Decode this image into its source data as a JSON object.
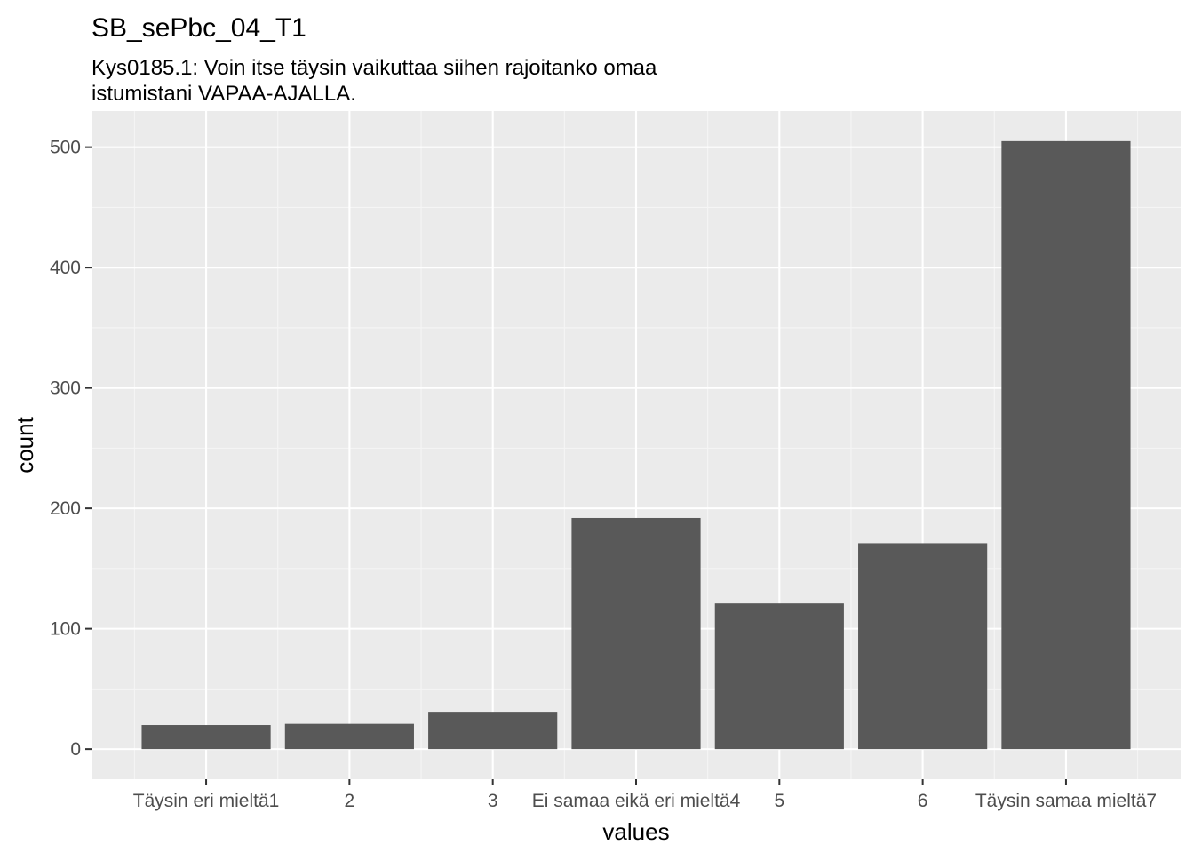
{
  "chart_data": {
    "type": "bar",
    "title": "SB_sePbc_04_T1",
    "subtitle_lines": [
      "Kys0185.1: Voin itse täysin vaikuttaa siihen rajoitanko omaa",
      "istumistani VAPAA-AJALLA."
    ],
    "xlabel": "values",
    "ylabel": "count",
    "categories": [
      "Täysin eri mieltä1",
      "2",
      "3",
      "Ei samaa eikä eri mieltä4",
      "5",
      "6",
      "Täysin samaa mieltä7"
    ],
    "values": [
      20,
      21,
      31,
      192,
      121,
      171,
      505
    ],
    "ylim": [
      -25,
      530
    ],
    "yticks": [
      0,
      100,
      200,
      300,
      400,
      500
    ],
    "ytick_labels": [
      "0",
      "100",
      "200",
      "300",
      "400",
      "500"
    ],
    "grid": true,
    "legend": "none",
    "colors": {
      "bar": "#595959",
      "panel": "#ebebeb",
      "grid_major": "#ffffff",
      "grid_minor": "#f5f5f5",
      "tick_text": "#4d4d4d",
      "tick_mark": "#333333"
    }
  }
}
